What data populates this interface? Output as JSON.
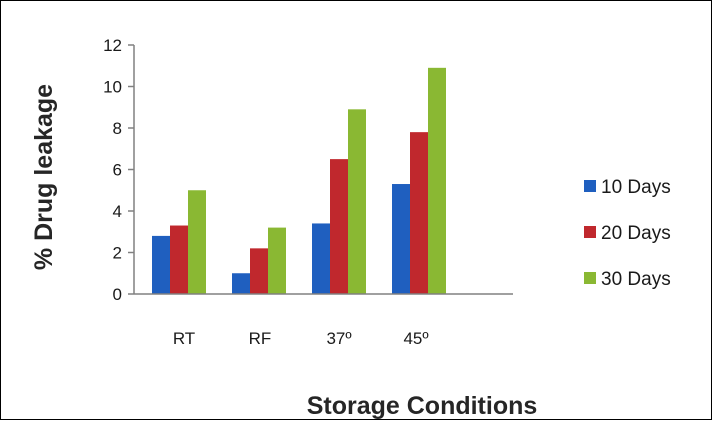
{
  "chart_data": {
    "type": "bar",
    "categories": [
      "RT",
      "RF",
      "37º",
      "45º"
    ],
    "series": [
      {
        "name": "10 Days",
        "color": "#1f5fbf",
        "values": [
          2.8,
          1.0,
          3.4,
          5.3
        ]
      },
      {
        "name": "20 Days",
        "color": "#c0282d",
        "values": [
          3.3,
          2.2,
          6.5,
          7.8
        ]
      },
      {
        "name": "30 Days",
        "color": "#8ab833",
        "values": [
          5.0,
          3.2,
          8.9,
          10.9
        ]
      }
    ],
    "title": "",
    "xlabel": "Storage Conditions",
    "ylabel": "% Drug leakage",
    "ylim": [
      0,
      12
    ],
    "yticks": [
      "0",
      "2",
      "4",
      "6",
      "8",
      "10",
      "12"
    ],
    "grid": false,
    "legend_position": "right"
  }
}
